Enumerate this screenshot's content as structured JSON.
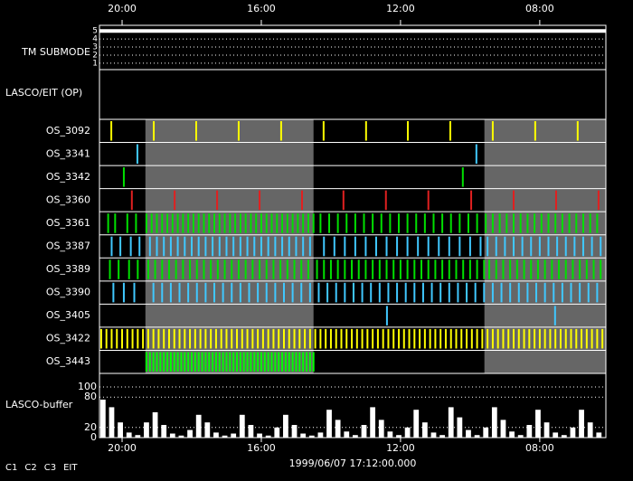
{
  "chart_data": {
    "type": "timeline",
    "xlim": [
      20.65,
      6.1
    ],
    "xticks": [
      {
        "value": 20,
        "label": "20:00"
      },
      {
        "value": 16,
        "label": "16:00"
      },
      {
        "value": 12,
        "label": "12:00"
      },
      {
        "value": 8,
        "label": "08:00"
      }
    ],
    "timestamp": "1999/06/07 17:12:00.000",
    "tm_submode": {
      "label": "TM SUBMODE",
      "ylim": [
        0.2,
        5.7
      ],
      "yticks": [
        5,
        4,
        3,
        2,
        1
      ],
      "color": "#ffffff",
      "x": [
        20.65,
        6.1
      ],
      "values": [
        5,
        5
      ]
    },
    "lasco_eit_label": "LASCO/EIT (OP)",
    "shaded": [
      [
        19.33,
        14.5
      ],
      [
        9.59,
        6.1
      ]
    ],
    "shade_color": "#666666",
    "rows": [
      {
        "name": "OS_3092",
        "color": "#ffff00",
        "x": [
          20.31,
          19.09,
          17.87,
          16.65,
          15.43,
          14.21,
          12.99,
          11.79,
          10.57,
          9.35,
          8.13,
          6.91
        ]
      },
      {
        "name": "OS_3341",
        "color": "#40c8ff",
        "x": [
          19.56,
          9.82
        ]
      },
      {
        "name": "OS_3342",
        "color": "#00e000",
        "x": [
          19.95,
          10.21
        ]
      },
      {
        "name": "OS_3360",
        "color": "#e02020",
        "x": [
          19.72,
          18.49,
          17.27,
          16.05,
          14.83,
          13.64,
          12.42,
          11.2,
          9.97,
          8.75,
          7.53,
          6.31
        ]
      },
      {
        "name": "OS_3361",
        "color": "#00e000",
        "x": [
          20.4,
          20.2,
          19.85,
          19.6,
          19.3,
          19.15,
          19.0,
          18.85,
          18.7,
          18.55,
          18.4,
          18.25,
          18.1,
          17.95,
          17.8,
          17.65,
          17.5,
          17.35,
          17.2,
          17.05,
          16.9,
          16.75,
          16.6,
          16.45,
          16.3,
          16.15,
          16.0,
          15.85,
          15.7,
          15.55,
          15.4,
          15.25,
          15.1,
          14.95,
          14.8,
          14.65,
          14.5,
          14.3,
          14.05,
          13.8,
          13.55,
          13.3,
          13.05,
          12.8,
          12.55,
          12.3,
          12.05,
          11.8,
          11.55,
          11.3,
          11.05,
          10.8,
          10.55,
          10.3,
          10.05,
          9.8,
          9.55,
          9.35,
          9.15,
          8.95,
          8.75,
          8.55,
          8.35,
          8.15,
          7.95,
          7.75,
          7.55,
          7.35,
          7.15,
          6.95,
          6.75,
          6.55,
          6.35
        ]
      },
      {
        "name": "OS_3387",
        "color": "#40c8ff",
        "x": [
          20.3,
          20.05,
          19.75,
          19.5,
          19.2,
          19.0,
          18.8,
          18.6,
          18.4,
          18.2,
          18.0,
          17.8,
          17.6,
          17.4,
          17.2,
          17.0,
          16.8,
          16.6,
          16.4,
          16.2,
          16.0,
          15.8,
          15.6,
          15.4,
          15.2,
          15.0,
          14.8,
          14.6,
          14.2,
          13.9,
          13.6,
          13.3,
          13.0,
          12.7,
          12.4,
          12.1,
          11.8,
          11.5,
          11.2,
          10.9,
          10.6,
          10.3,
          10.0,
          9.7,
          9.5,
          9.25,
          9.0,
          8.75,
          8.5,
          8.25,
          8.0,
          7.75,
          7.5,
          7.25,
          7.0,
          6.75,
          6.5,
          6.25
        ]
      },
      {
        "name": "OS_3389",
        "color": "#00e000",
        "x": [
          20.35,
          20.1,
          19.8,
          19.55,
          19.25,
          19.05,
          18.85,
          18.65,
          18.45,
          18.25,
          18.05,
          17.85,
          17.65,
          17.45,
          17.25,
          17.05,
          16.85,
          16.65,
          16.45,
          16.25,
          16.05,
          15.85,
          15.65,
          15.45,
          15.25,
          15.05,
          14.85,
          14.65,
          14.4,
          14.2,
          14.0,
          13.8,
          13.6,
          13.4,
          13.2,
          13.0,
          12.8,
          12.6,
          12.4,
          12.2,
          12.0,
          11.8,
          11.6,
          11.4,
          11.2,
          11.0,
          10.8,
          10.6,
          10.4,
          10.2,
          10.0,
          9.8,
          9.6,
          9.45,
          9.25,
          9.05,
          8.85,
          8.65,
          8.45,
          8.25,
          8.05,
          7.85,
          7.65,
          7.45,
          7.25,
          7.05,
          6.85,
          6.65,
          6.45,
          6.25
        ]
      },
      {
        "name": "OS_3390",
        "color": "#40c8ff",
        "x": [
          20.25,
          19.95,
          19.65,
          19.1,
          18.85,
          18.6,
          18.35,
          18.1,
          17.85,
          17.6,
          17.35,
          17.1,
          16.85,
          16.6,
          16.35,
          16.1,
          15.85,
          15.6,
          15.35,
          15.1,
          14.85,
          14.6,
          14.35,
          14.1,
          13.85,
          13.6,
          13.35,
          13.1,
          12.85,
          12.6,
          12.35,
          12.1,
          11.85,
          11.6,
          11.35,
          11.1,
          10.85,
          10.6,
          10.35,
          10.1,
          9.85,
          9.6,
          9.35,
          9.1,
          8.85,
          8.6,
          8.35,
          8.1,
          7.85,
          7.6,
          7.35,
          7.1,
          6.85,
          6.6,
          6.35
        ]
      },
      {
        "name": "OS_3405",
        "color": "#40c8ff",
        "x": [
          12.39,
          7.56
        ]
      },
      {
        "name": "OS_3422",
        "color": "#ffff00",
        "x": [
          20.6,
          20.45,
          20.3,
          20.15,
          20.0,
          19.85,
          19.7,
          19.55,
          19.4,
          19.25,
          19.1,
          18.95,
          18.8,
          18.65,
          18.5,
          18.35,
          18.2,
          18.05,
          17.9,
          17.75,
          17.6,
          17.45,
          17.3,
          17.15,
          17.0,
          16.85,
          16.7,
          16.55,
          16.4,
          16.25,
          16.1,
          15.95,
          15.8,
          15.65,
          15.5,
          15.35,
          15.2,
          15.05,
          14.9,
          14.75,
          14.6,
          14.45,
          14.3,
          14.15,
          14.0,
          13.85,
          13.7,
          13.55,
          13.4,
          13.25,
          13.1,
          12.95,
          12.8,
          12.65,
          12.5,
          12.35,
          12.2,
          12.05,
          11.9,
          11.75,
          11.6,
          11.45,
          11.3,
          11.15,
          11.0,
          10.85,
          10.7,
          10.55,
          10.4,
          10.25,
          10.1,
          9.95,
          9.8,
          9.65,
          9.5,
          9.35,
          9.2,
          9.05,
          8.9,
          8.75,
          8.6,
          8.45,
          8.3,
          8.15,
          8.0,
          7.85,
          7.7,
          7.55,
          7.4,
          7.25,
          7.1,
          6.95,
          6.8,
          6.65,
          6.5,
          6.35,
          6.2
        ]
      },
      {
        "name": "OS_3443",
        "color": "#00ff00",
        "x": [
          19.3,
          19.2,
          19.1,
          19.0,
          18.9,
          18.8,
          18.7,
          18.6,
          18.5,
          18.4,
          18.3,
          18.2,
          18.1,
          18.0,
          17.9,
          17.8,
          17.7,
          17.6,
          17.5,
          17.4,
          17.3,
          17.2,
          17.1,
          17.0,
          16.9,
          16.8,
          16.7,
          16.6,
          16.5,
          16.4,
          16.3,
          16.2,
          16.1,
          16.0,
          15.9,
          15.8,
          15.7,
          15.6,
          15.5,
          15.4,
          15.3,
          15.2,
          15.1,
          15.0,
          14.9,
          14.8,
          14.7,
          14.6,
          14.5
        ]
      }
    ],
    "buffer": {
      "label": "LASCO-buffer",
      "ylim": [
        0,
        125
      ],
      "yticks": [
        100,
        80,
        20,
        0
      ],
      "color": "#ffffff",
      "x": [
        20.5,
        20.25,
        20.0,
        19.75,
        19.5,
        19.25,
        19.0,
        18.75,
        18.5,
        18.25,
        18.0,
        17.75,
        17.5,
        17.25,
        17.0,
        16.75,
        16.5,
        16.25,
        16.0,
        15.75,
        15.5,
        15.25,
        15.0,
        14.75,
        14.5,
        14.25,
        14.0,
        13.75,
        13.5,
        13.25,
        13.0,
        12.75,
        12.5,
        12.25,
        12.0,
        11.75,
        11.5,
        11.25,
        11.0,
        10.75,
        10.5,
        10.25,
        10.0,
        9.75,
        9.5,
        9.25,
        9.0,
        8.75,
        8.5,
        8.25,
        8.0,
        7.75,
        7.5,
        7.25,
        7.0,
        6.75,
        6.5,
        6.25
      ],
      "values": [
        75,
        60,
        30,
        10,
        5,
        30,
        50,
        25,
        8,
        4,
        15,
        45,
        30,
        10,
        4,
        8,
        45,
        25,
        8,
        4,
        20,
        45,
        25,
        8,
        4,
        10,
        55,
        35,
        12,
        5,
        25,
        60,
        35,
        12,
        5,
        20,
        55,
        30,
        10,
        5,
        60,
        40,
        15,
        5,
        20,
        60,
        35,
        12,
        5,
        25,
        55,
        30,
        10,
        5,
        20,
        55,
        30,
        10
      ]
    },
    "legend": [
      {
        "name": "C1",
        "color": "#ff2020"
      },
      {
        "name": "C2",
        "color": "#00e000"
      },
      {
        "name": "C3",
        "color": "#ffffff"
      },
      {
        "name": "EIT",
        "color": "#ffffff"
      }
    ]
  }
}
